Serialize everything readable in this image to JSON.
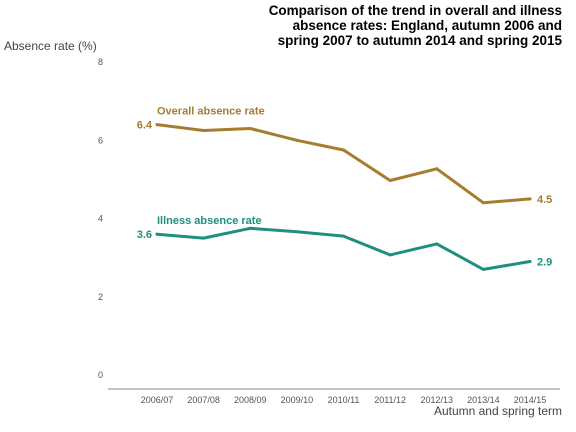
{
  "chart_data": {
    "type": "line",
    "title_lines": [
      "Comparison of the trend in overall and illness",
      "absence rates: England, autumn 2006 and",
      "spring 2007 to autumn 2014 and spring 2015"
    ],
    "xlabel": "Autumn and spring term",
    "ylabel": "Absence rate (%)",
    "ylim": [
      0,
      8
    ],
    "yticks": [
      "0",
      "2",
      "4",
      "6",
      "8"
    ],
    "categories": [
      "2006/07",
      "2007/08",
      "2008/09",
      "2009/10",
      "2010/11",
      "2011/12",
      "2012/13",
      "2013/14",
      "2014/15"
    ],
    "grid": false,
    "series": [
      {
        "name": "Overall absence rate",
        "color": "#a67c2e",
        "values": [
          6.4,
          6.25,
          6.3,
          6.0,
          5.75,
          4.97,
          5.27,
          4.4,
          4.5
        ],
        "start_label": "6.4",
        "end_label": "4.5"
      },
      {
        "name": "Illness absence rate",
        "color": "#1f8f80",
        "values": [
          3.6,
          3.5,
          3.75,
          3.66,
          3.55,
          3.07,
          3.35,
          2.7,
          2.9
        ],
        "start_label": "3.6",
        "end_label": "2.9"
      }
    ]
  }
}
